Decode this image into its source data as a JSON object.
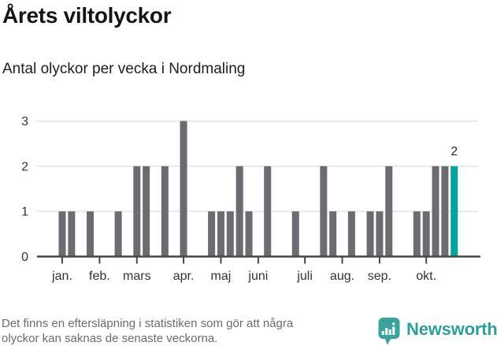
{
  "title": "Årets viltolyckor",
  "subtitle": "Antal olyckor per vecka i Nordmaling",
  "footer": {
    "note_line1": "Det finns en eftersläpning i statistiken som gör att några",
    "note_line2": "olyckor kan saknas de senaste veckorna.",
    "brand_name": "Newsworthy"
  },
  "colors": {
    "bar": "#6b6b71",
    "highlight": "#00a49b",
    "axis": "#47474a",
    "grid": "#e8e8e8",
    "tick_label": "#333333",
    "annotation": "#222222",
    "note_text": "#6b6b6b",
    "brand_teal": "#2f9e9a",
    "logo_teal": "#3ba29d"
  },
  "icons": {
    "logo": "newsworthy-speech-bubble-bar-chart-icon"
  },
  "chart_data": {
    "type": "bar",
    "title": "Årets viltolyckor",
    "subtitle": "Antal olyckor per vecka i Nordmaling",
    "xlabel": "",
    "ylabel": "",
    "ylim": [
      0,
      3
    ],
    "yticks": [
      0,
      1,
      2,
      3
    ],
    "grid": "horizontal",
    "x_unit": "week",
    "weekly_values": [
      1,
      1,
      0,
      1,
      0,
      0,
      1,
      0,
      2,
      2,
      0,
      2,
      0,
      3,
      0,
      0,
      1,
      1,
      1,
      2,
      1,
      0,
      2,
      0,
      0,
      1,
      0,
      0,
      2,
      1,
      0,
      1,
      0,
      1,
      1,
      2,
      0,
      0,
      1,
      1,
      2,
      2,
      2
    ],
    "month_ticks": [
      {
        "label": "jan.",
        "week_index": 0
      },
      {
        "label": "feb.",
        "week_index": 4
      },
      {
        "label": "mars",
        "week_index": 8
      },
      {
        "label": "apr.",
        "week_index": 13
      },
      {
        "label": "maj",
        "week_index": 17
      },
      {
        "label": "juni",
        "week_index": 21
      },
      {
        "label": "juli",
        "week_index": 26
      },
      {
        "label": "aug.",
        "week_index": 30
      },
      {
        "label": "sep.",
        "week_index": 34
      },
      {
        "label": "okt.",
        "week_index": 39
      }
    ],
    "highlight_index": 42,
    "annotation": {
      "text": "2",
      "week_index": 42
    }
  }
}
